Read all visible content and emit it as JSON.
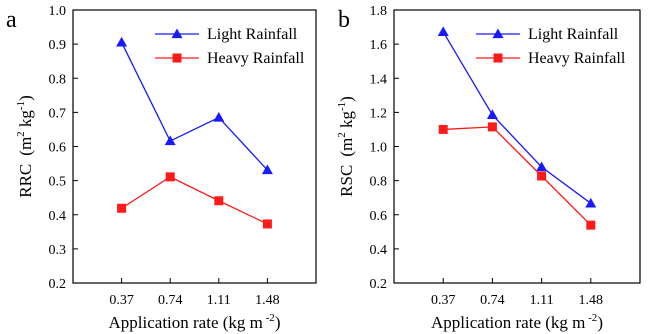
{
  "chart_data": [
    {
      "type": "line",
      "panel_label": "a",
      "categories": [
        "0.37",
        "0.74",
        "1.11",
        "1.48"
      ],
      "x": [
        0.37,
        0.74,
        1.11,
        1.48
      ],
      "ylim": [
        0.2,
        1.0
      ],
      "yticks": [
        "0.2",
        "0.3",
        "0.4",
        "0.5",
        "0.6",
        "0.7",
        "0.8",
        "0.9",
        "1.0"
      ],
      "ylabel_main": "RRC",
      "ylabel_unit_open": "(m",
      "ylabel_unit_sup1": "2",
      "ylabel_unit_mid": " kg",
      "ylabel_unit_sup2": "-1",
      "ylabel_unit_close": ")",
      "xlabel_main": "Application rate (kg m",
      "xlabel_sup": " -2",
      "xlabel_close": ")",
      "legend_position": "top-right",
      "series": [
        {
          "name": "Light Rainfall",
          "color": "#1a1aff",
          "marker": "triangle",
          "values": [
            0.905,
            0.616,
            0.685,
            0.531
          ]
        },
        {
          "name": "Heavy Rainfall",
          "color": "#ff1a1a",
          "marker": "square",
          "values": [
            0.419,
            0.511,
            0.441,
            0.373
          ]
        }
      ]
    },
    {
      "type": "line",
      "panel_label": "b",
      "categories": [
        "0.37",
        "0.74",
        "1.11",
        "1.48"
      ],
      "x": [
        0.37,
        0.74,
        1.11,
        1.48
      ],
      "ylim": [
        0.2,
        1.8
      ],
      "yticks": [
        "0.2",
        "0.4",
        "0.6",
        "0.8",
        "1.0",
        "1.2",
        "1.4",
        "1.6",
        "1.8"
      ],
      "ylabel_main": "RSC",
      "ylabel_unit_open": "(m",
      "ylabel_unit_sup1": "2",
      "ylabel_unit_mid": " kg",
      "ylabel_unit_sup2": "-1",
      "ylabel_unit_close": ")",
      "xlabel_main": "Application rate (kg m",
      "xlabel_sup": " -2",
      "xlabel_close": ")",
      "legend_position": "top-right",
      "series": [
        {
          "name": "Light Rainfall",
          "color": "#1a1aff",
          "marker": "triangle",
          "values": [
            1.672,
            1.185,
            0.88,
            0.667
          ]
        },
        {
          "name": "Heavy Rainfall",
          "color": "#ff1a1a",
          "marker": "square",
          "values": [
            1.1,
            1.115,
            0.827,
            0.539
          ]
        }
      ]
    }
  ]
}
